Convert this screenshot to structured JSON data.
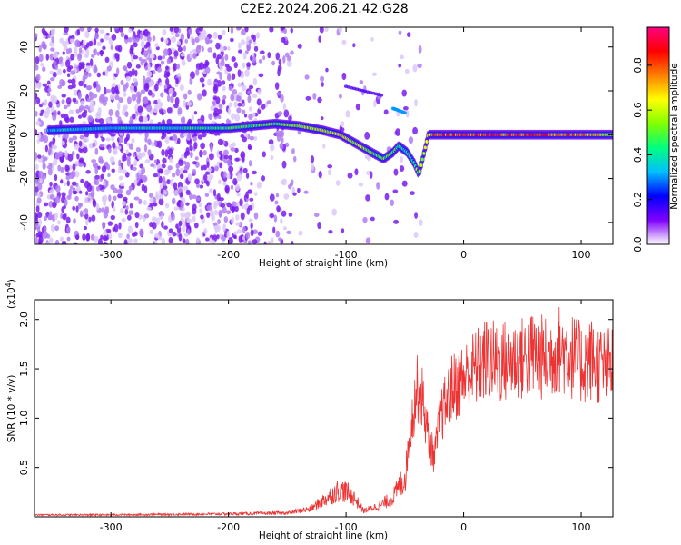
{
  "figure_title": "C2E2.2024.206.21.42.G28",
  "chart_data": [
    {
      "id": "spectrogram",
      "type": "heatmap",
      "title": "",
      "xlabel": "Height of straight line (km)",
      "ylabel": "Frequency (Hz)",
      "xlim": [
        -365,
        127
      ],
      "ylim": [
        -50,
        49
      ],
      "xticks": [
        -300,
        -200,
        -100,
        0,
        100
      ],
      "xtick_labels": [
        "-300",
        "-200",
        "-100",
        "0",
        "100"
      ],
      "yticks": [
        -40,
        -20,
        0,
        20,
        40
      ],
      "ytick_labels": [
        "-40",
        "-20",
        "0",
        "20",
        "40"
      ],
      "colorbar": {
        "label": "Normalized spectral amplitude",
        "range": [
          0,
          0.97
        ],
        "ticks": [
          0.0,
          0.2,
          0.4,
          0.6,
          0.8
        ],
        "tick_labels": [
          "0.0",
          "0.2",
          "0.4",
          "0.6",
          "0.8"
        ],
        "colormap": [
          "#ffffff",
          "#7f00ff",
          "#0000ff",
          "#00bfff",
          "#00ff80",
          "#80ff00",
          "#ffff00",
          "#ff8000",
          "#ff0000",
          "#ff0080"
        ]
      },
      "ridge_path": [
        [
          -350,
          2
        ],
        [
          -300,
          3
        ],
        [
          -250,
          3
        ],
        [
          -200,
          3
        ],
        [
          -180,
          4
        ],
        [
          -160,
          5
        ],
        [
          -140,
          4
        ],
        [
          -120,
          2
        ],
        [
          -105,
          0
        ],
        [
          -95,
          -3
        ],
        [
          -85,
          -6
        ],
        [
          -75,
          -9
        ],
        [
          -68,
          -11
        ],
        [
          -60,
          -8
        ],
        [
          -55,
          -5
        ],
        [
          -48,
          -8
        ],
        [
          -42,
          -13
        ],
        [
          -38,
          -18
        ],
        [
          -30,
          0
        ],
        [
          0,
          0
        ],
        [
          50,
          0
        ],
        [
          100,
          0
        ],
        [
          127,
          0
        ]
      ],
      "ridge_amplitude": [
        [
          -350,
          0.35
        ],
        [
          -250,
          0.4
        ],
        [
          -180,
          0.5
        ],
        [
          -130,
          0.6
        ],
        [
          -100,
          0.65
        ],
        [
          -75,
          0.55
        ],
        [
          -45,
          0.45
        ],
        [
          -25,
          0.8
        ],
        [
          0,
          0.85
        ],
        [
          50,
          0.85
        ],
        [
          100,
          0.8
        ],
        [
          127,
          0.6
        ]
      ],
      "secondary_features": [
        {
          "x_start": -100,
          "x_end": -70,
          "y_start": 22,
          "y_end": 18,
          "amplitude": 0.15
        },
        {
          "x_start": -60,
          "x_end": -50,
          "y_start": 12,
          "y_end": 10,
          "amplitude": 0.3
        }
      ],
      "noise_background": "dense speckle noise for x < -145, sparse for -145 to -30, none beyond"
    },
    {
      "id": "snr",
      "type": "line",
      "title": "",
      "xlabel": "Height of straight line (km)",
      "ylabel": "SNR (10 * v/v)",
      "y_multiplier_label": "(x10",
      "y_multiplier_exponent": "4",
      "y_multiplier_close": ")",
      "xlim": [
        -365,
        127
      ],
      "ylim": [
        0,
        2.2
      ],
      "xticks": [
        -300,
        -200,
        -100,
        0,
        100
      ],
      "xtick_labels": [
        "-300",
        "-200",
        "-100",
        "0",
        "100"
      ],
      "yticks": [
        0.5,
        1.0,
        1.5,
        2.0
      ],
      "ytick_labels": [
        "0.5",
        "1.0",
        "1.5",
        "2.0"
      ],
      "line_color": "#ee3333",
      "series": [
        {
          "values_envelope": [
            [
              -365,
              0.02
            ],
            [
              -300,
              0.02
            ],
            [
              -200,
              0.03
            ],
            [
              -150,
              0.04
            ],
            [
              -130,
              0.08
            ],
            [
              -115,
              0.2
            ],
            [
              -105,
              0.28
            ],
            [
              -95,
              0.22
            ],
            [
              -85,
              0.06
            ],
            [
              -70,
              0.12
            ],
            [
              -60,
              0.2
            ],
            [
              -50,
              0.4
            ],
            [
              -45,
              0.9
            ],
            [
              -40,
              1.3
            ],
            [
              -35,
              1.2
            ],
            [
              -30,
              0.8
            ],
            [
              -25,
              0.6
            ],
            [
              -20,
              1.0
            ],
            [
              -10,
              1.3
            ],
            [
              0,
              1.4
            ],
            [
              10,
              1.5
            ],
            [
              20,
              1.6
            ],
            [
              30,
              1.55
            ],
            [
              40,
              1.6
            ],
            [
              50,
              1.6
            ],
            [
              60,
              1.65
            ],
            [
              70,
              1.6
            ],
            [
              80,
              1.7
            ],
            [
              90,
              1.65
            ],
            [
              100,
              1.55
            ],
            [
              110,
              1.6
            ],
            [
              120,
              1.5
            ],
            [
              127,
              1.55
            ]
          ]
        }
      ]
    }
  ]
}
